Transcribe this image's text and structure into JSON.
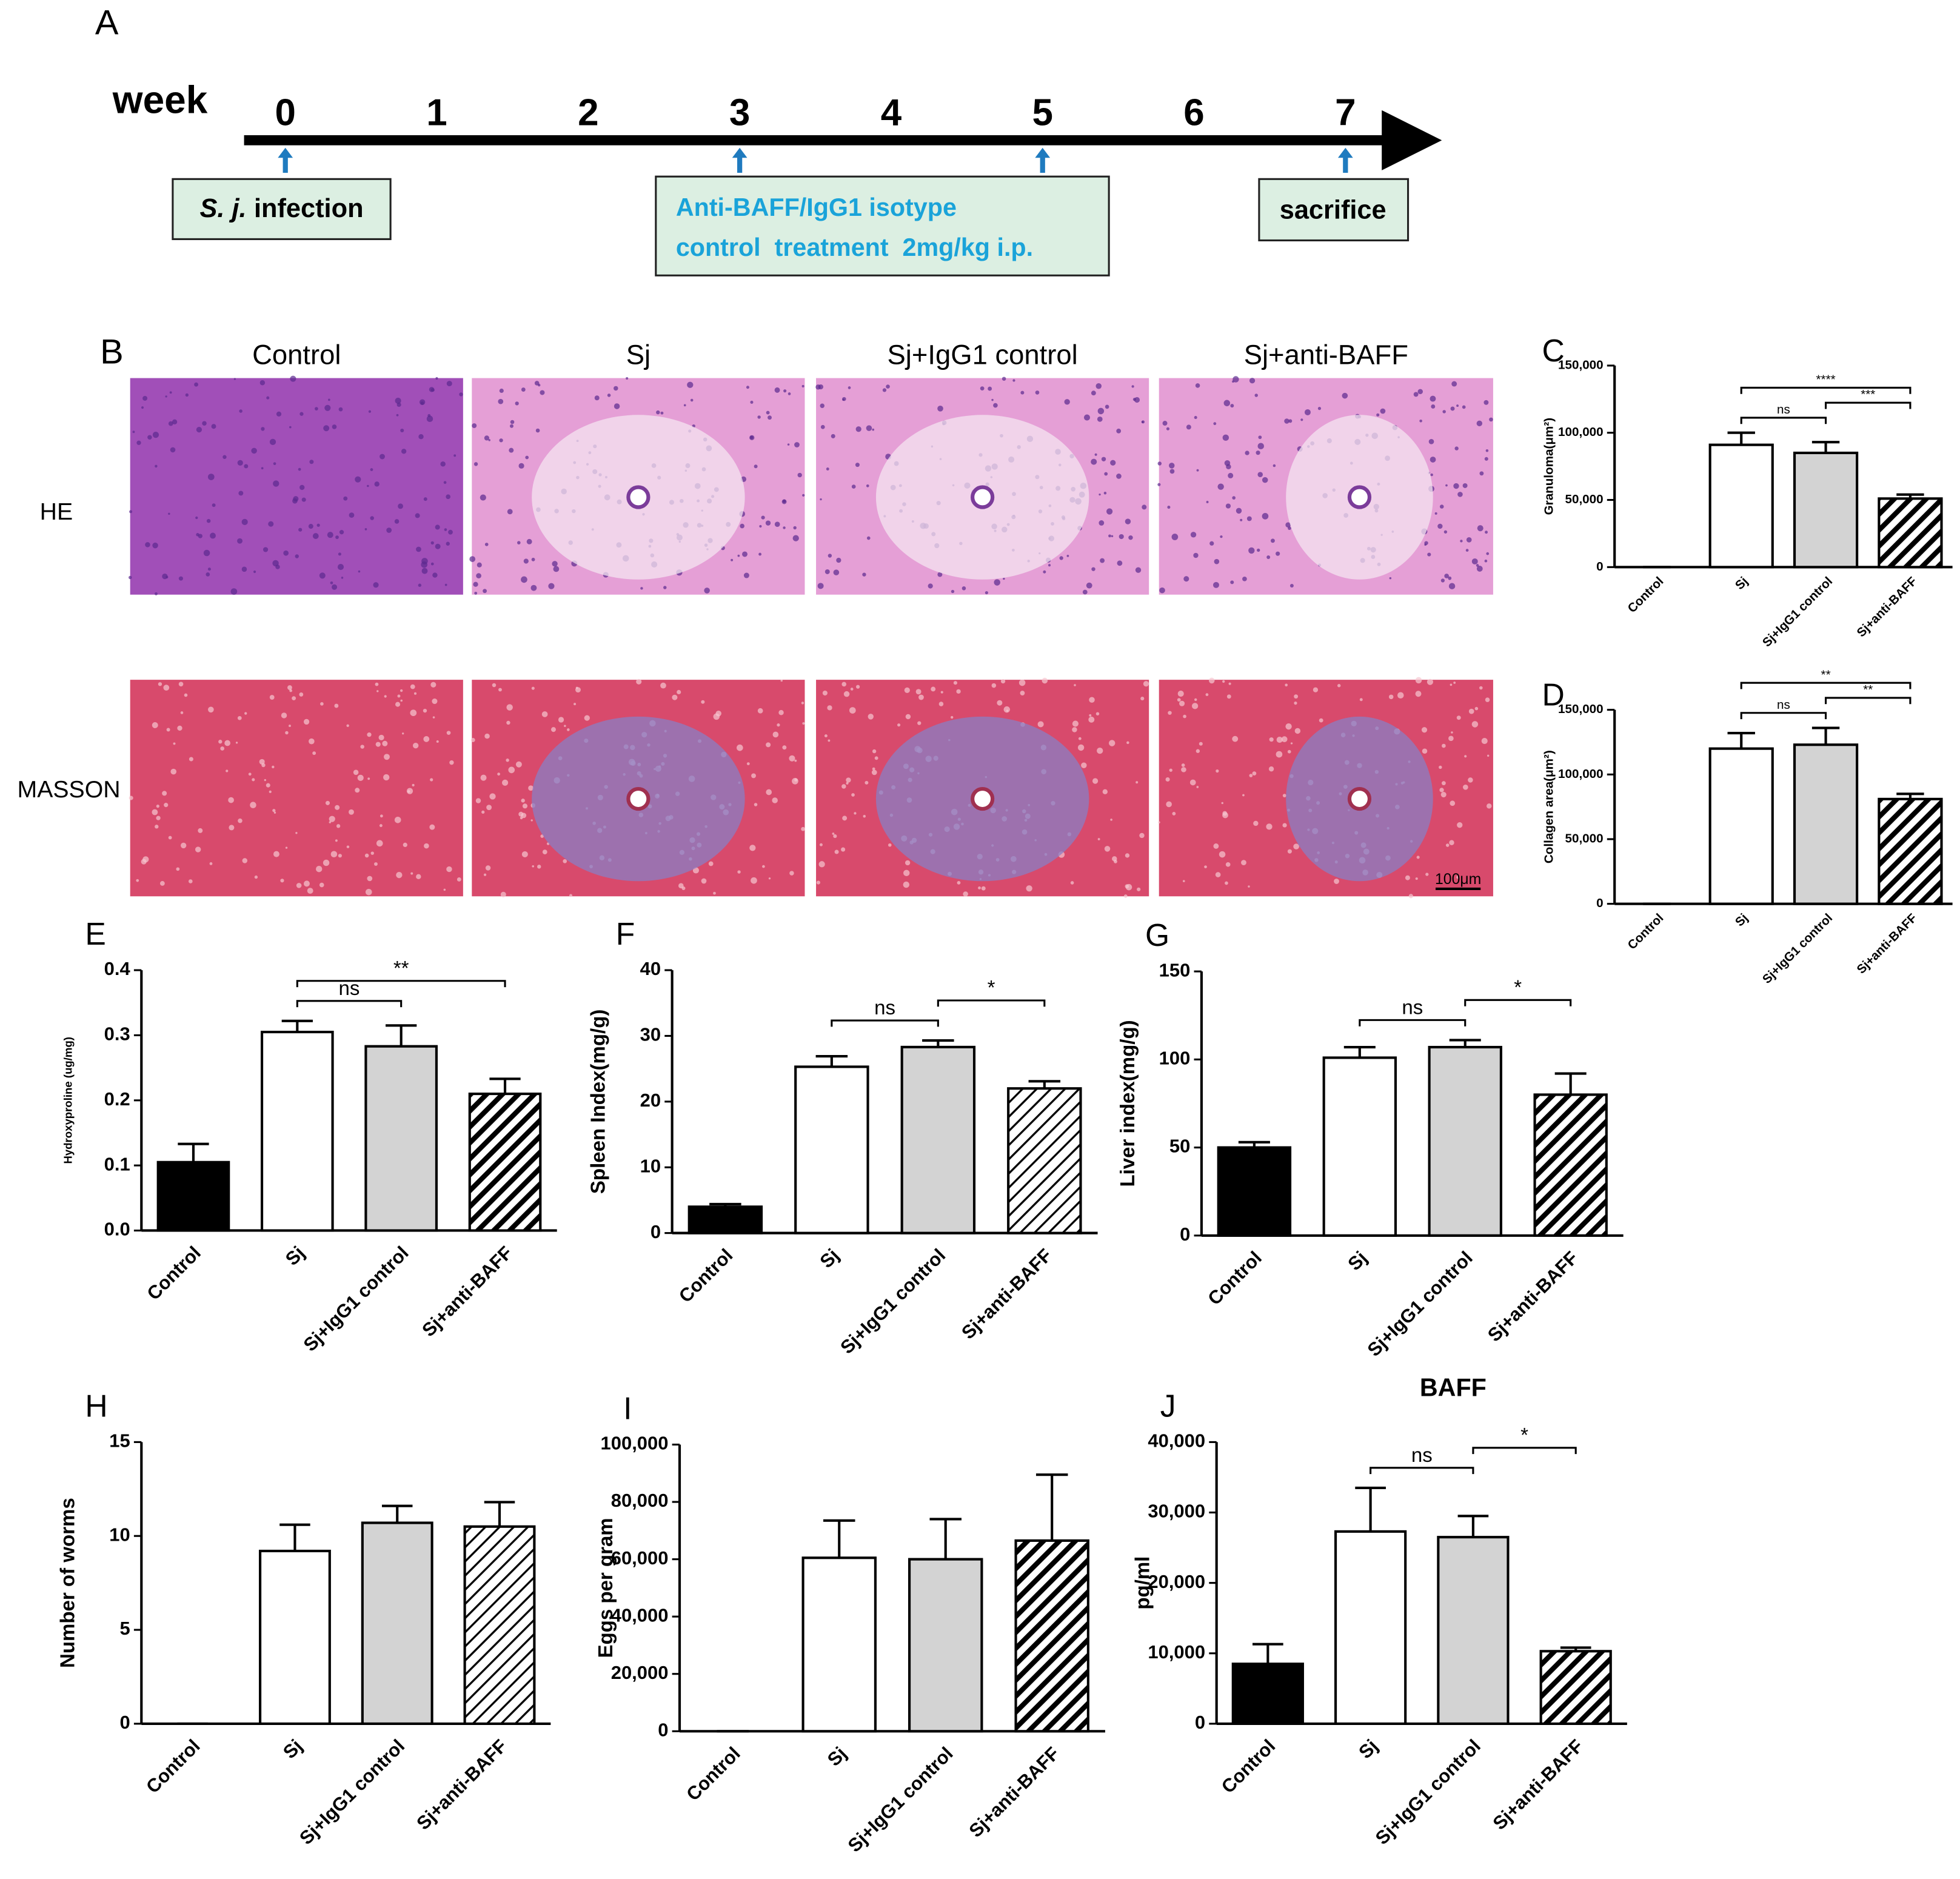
{
  "timeline": {
    "label": "A",
    "axis_label": "week",
    "weeks": [
      0,
      1,
      2,
      3,
      4,
      5,
      6,
      7
    ],
    "infection_italic": "S. j.",
    "infection_text": "infection",
    "treatment_lines": [
      "Anti-BAFF/IgG1 isotype",
      "control  treatment  2mg/kg i.p."
    ],
    "sacrifice": "sacrifice"
  },
  "histology": {
    "label": "B",
    "columns": [
      "Control",
      "Sj",
      "Sj+IgG1 control",
      "Sj+anti-BAFF"
    ],
    "rows": [
      "HE",
      "MASSON"
    ],
    "scale_bar": "100μm"
  },
  "chart_data": [
    {
      "type": "bar",
      "panel": "C",
      "ylabel": "Granuloma(μm²)",
      "categories": [
        "Control",
        "Sj",
        "Sj+IgG1 control",
        "Sj+anti-BAFF"
      ],
      "values": [
        0,
        91000,
        85000,
        51000
      ],
      "errors": [
        0,
        9000,
        8000,
        3000
      ],
      "fills": [
        "#000000",
        "#ffffff",
        "#d3d3d3",
        "hatch"
      ],
      "ylim": [
        0,
        150000
      ],
      "yticks": [
        0,
        {
          "value": 50000,
          "label": "50,000"
        },
        {
          "value": 100000,
          "label": "100,000"
        },
        {
          "value": 150000,
          "label": "150,000"
        }
      ],
      "comparisons": [
        {
          "from": "Sj",
          "to": "Sj+IgG1 control",
          "label": "ns"
        },
        {
          "from": "Sj+IgG1 control",
          "to": "Sj+anti-BAFF",
          "label": "***"
        },
        {
          "from": "Sj",
          "to": "Sj+anti-BAFF",
          "label": "****"
        }
      ]
    },
    {
      "type": "bar",
      "panel": "D",
      "ylabel": "Collagen area(μm²)",
      "categories": [
        "Control",
        "Sj",
        "Sj+IgG1 control",
        "Sj+anti-BAFF"
      ],
      "values": [
        0,
        120000,
        123000,
        81000
      ],
      "errors": [
        0,
        12000,
        13000,
        4000
      ],
      "fills": [
        "#000000",
        "#ffffff",
        "#d3d3d3",
        "hatch"
      ],
      "ylim": [
        0,
        150000
      ],
      "yticks": [
        0,
        {
          "value": 50000,
          "label": "50,000"
        },
        {
          "value": 100000,
          "label": "100,000"
        },
        {
          "value": 150000,
          "label": "150,000"
        }
      ],
      "comparisons": [
        {
          "from": "Sj",
          "to": "Sj+IgG1 control",
          "label": "ns"
        },
        {
          "from": "Sj+IgG1 control",
          "to": "Sj+anti-BAFF",
          "label": "**"
        },
        {
          "from": "Sj",
          "to": "Sj+anti-BAFF",
          "label": "**"
        }
      ]
    },
    {
      "type": "bar",
      "panel": "E",
      "ylabel": "Hydroxyproline (ug/mg)",
      "categories": [
        "Control",
        "Sj",
        "Sj+IgG1 control",
        "Sj+anti-BAFF"
      ],
      "values": [
        0.105,
        0.305,
        0.283,
        0.21
      ],
      "errors": [
        0.028,
        0.017,
        0.032,
        0.023
      ],
      "fills": [
        "#000000",
        "#ffffff",
        "#d3d3d3",
        "hatch"
      ],
      "ylim": [
        0,
        0.4
      ],
      "yticks": [
        {
          "value": 0,
          "label": "0.0"
        },
        0.1,
        0.2,
        0.3,
        0.4
      ],
      "comparisons": [
        {
          "from": "Sj",
          "to": "Sj+IgG1 control",
          "label": "ns"
        },
        {
          "from": "Sj",
          "to": "Sj+anti-BAFF",
          "label": "**"
        }
      ]
    },
    {
      "type": "bar",
      "panel": "F",
      "ylabel": "Spleen Index(mg/g)",
      "categories": [
        "Control",
        "Sj",
        "Sj+IgG1 control",
        "Sj+anti-BAFF"
      ],
      "values": [
        4,
        25.3,
        28.3,
        22
      ],
      "errors": [
        0.4,
        1.6,
        1,
        1.1
      ],
      "fills": [
        "#000000",
        "#ffffff",
        "#d3d3d3",
        "hatch-thin"
      ],
      "ylim": [
        0,
        40
      ],
      "yticks": [
        0,
        10,
        20,
        30,
        40
      ],
      "comparisons": [
        {
          "from": "Sj",
          "to": "Sj+IgG1 control",
          "label": "ns"
        },
        {
          "from": "Sj+IgG1 control",
          "to": "Sj+anti-BAFF",
          "label": "*"
        }
      ]
    },
    {
      "type": "bar",
      "panel": "G",
      "ylabel": "Liver index(mg/g)",
      "categories": [
        "Control",
        "Sj",
        "Sj+IgG1 control",
        "Sj+anti-BAFF"
      ],
      "values": [
        50,
        101,
        107,
        80
      ],
      "errors": [
        3,
        6,
        4,
        12
      ],
      "fills": [
        "#000000",
        "#ffffff",
        "#d3d3d3",
        "hatch"
      ],
      "ylim": [
        0,
        150
      ],
      "yticks": [
        0,
        50,
        100,
        150
      ],
      "comparisons": [
        {
          "from": "Sj",
          "to": "Sj+IgG1 control",
          "label": "ns"
        },
        {
          "from": "Sj+IgG1 control",
          "to": "Sj+anti-BAFF",
          "label": "*"
        }
      ]
    },
    {
      "type": "bar",
      "panel": "H",
      "ylabel": "Number of worms",
      "categories": [
        "Control",
        "Sj",
        "Sj+IgG1 control",
        "Sj+anti-BAFF"
      ],
      "values": [
        0,
        9.2,
        10.7,
        10.5
      ],
      "errors": [
        0,
        1.4,
        0.9,
        1.3
      ],
      "fills": [
        "#000000",
        "#ffffff",
        "#d3d3d3",
        "hatch-thin"
      ],
      "ylim": [
        0,
        15
      ],
      "yticks": [
        0,
        5,
        10,
        15
      ],
      "comparisons": []
    },
    {
      "type": "bar",
      "panel": "I",
      "ylabel": "Eggs per gram",
      "categories": [
        "Control",
        "Sj",
        "Sj+IgG1 control",
        "Sj+anti-BAFF"
      ],
      "values": [
        0,
        60500,
        60000,
        66500
      ],
      "errors": [
        0,
        13000,
        14000,
        23000
      ],
      "fills": [
        "#000000",
        "#ffffff",
        "#d3d3d3",
        "hatch"
      ],
      "ylim": [
        0,
        100000
      ],
      "yticks": [
        0,
        {
          "value": 20000,
          "label": "20,000"
        },
        {
          "value": 40000,
          "label": "40,000"
        },
        {
          "value": 60000,
          "label": "60,000"
        },
        {
          "value": 80000,
          "label": "80,000"
        },
        {
          "value": 100000,
          "label": "100,000"
        }
      ],
      "comparisons": []
    },
    {
      "type": "bar",
      "panel": "J",
      "title": "BAFF",
      "ylabel": "pg/ml",
      "categories": [
        "Control",
        "Sj",
        "Sj+IgG1 control",
        "Sj+anti-BAFF"
      ],
      "values": [
        8500,
        27300,
        26500,
        10300
      ],
      "errors": [
        2800,
        6200,
        3000,
        500
      ],
      "fills": [
        "#000000",
        "#ffffff",
        "#d3d3d3",
        "hatch"
      ],
      "ylim": [
        0,
        40000
      ],
      "yticks": [
        0,
        {
          "value": 10000,
          "label": "10,000"
        },
        {
          "value": 20000,
          "label": "20,000"
        },
        {
          "value": 30000,
          "label": "30,000"
        },
        {
          "value": 40000,
          "label": "40,000"
        }
      ],
      "comparisons": [
        {
          "from": "Sj",
          "to": "Sj+IgG1 control",
          "label": "ns"
        },
        {
          "from": "Sj+IgG1 control",
          "to": "Sj+anti-BAFF",
          "label": "*"
        }
      ]
    }
  ]
}
